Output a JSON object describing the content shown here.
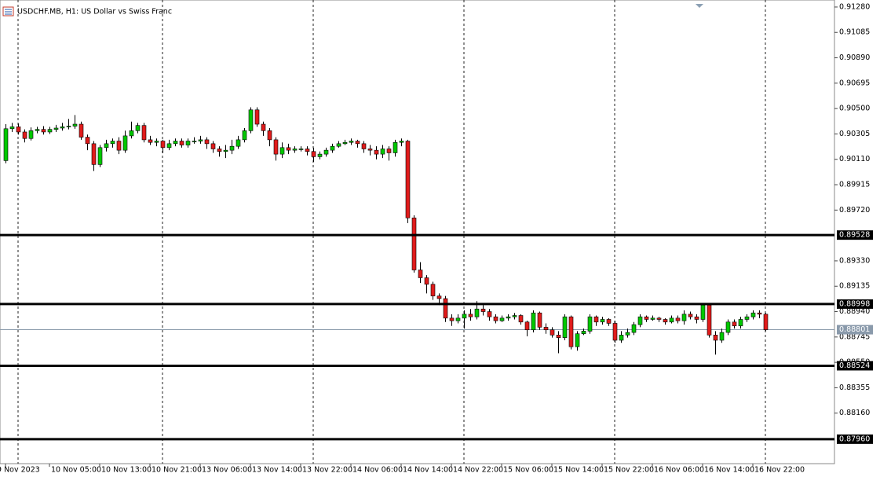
{
  "chart_data": {
    "type": "candlestick",
    "title": "USDCHF.MB, H1:  US Dollar vs Swiss Franc",
    "up_color": "#00c800",
    "down_color": "#e01b1b",
    "categories": [
      "9 Nov 2023",
      null,
      null,
      null,
      null,
      null,
      null,
      "10 Nov 05:00",
      null,
      null,
      null,
      null,
      null,
      null,
      null,
      "10 Nov 13:00",
      null,
      null,
      null,
      null,
      null,
      null,
      null,
      "10 Nov 21:00",
      null,
      null,
      null,
      null,
      null,
      null,
      null,
      "13 Nov 06:00",
      null,
      null,
      null,
      null,
      null,
      null,
      null,
      "13 Nov 14:00",
      null,
      null,
      null,
      null,
      null,
      null,
      null,
      "13 Nov 22:00",
      null,
      null,
      null,
      null,
      null,
      null,
      null,
      "14 Nov 06:00",
      null,
      null,
      null,
      null,
      null,
      null,
      null,
      "14 Nov 14:00",
      null,
      null,
      null,
      null,
      null,
      null,
      null,
      "14 Nov 22:00",
      null,
      null,
      null,
      null,
      null,
      null,
      null,
      "15 Nov 06:00",
      null,
      null,
      null,
      null,
      null,
      null,
      null,
      "15 Nov 14:00",
      null,
      null,
      null,
      null,
      null,
      null,
      null,
      "15 Nov 22:00",
      null,
      null,
      null,
      null,
      null,
      null,
      null,
      "16 Nov 06:00",
      null,
      null,
      null,
      null,
      null,
      null,
      null,
      "16 Nov 14:00",
      null,
      null,
      null,
      null,
      null,
      null,
      null,
      "16 Nov 22:00",
      null,
      null
    ],
    "open": [
      0.901,
      0.90345,
      0.9036,
      0.9032,
      0.9027,
      0.9033,
      0.9034,
      0.9032,
      0.9034,
      0.9035,
      0.9036,
      0.90365,
      0.9038,
      0.9028,
      0.9023,
      0.9007,
      0.902,
      0.9023,
      0.9025,
      0.9018,
      0.9029,
      0.9033,
      0.9037,
      0.9026,
      0.9024,
      0.9025,
      0.902,
      0.9023,
      0.9025,
      0.9022,
      0.9025,
      0.9025,
      0.9026,
      0.9023,
      0.9019,
      0.9017,
      0.9018,
      0.9021,
      0.9026,
      0.9033,
      0.9049,
      0.9038,
      0.9033,
      0.9026,
      0.9015,
      0.902,
      0.9018,
      0.9019,
      0.9019,
      0.9017,
      0.9013,
      0.9015,
      0.9018,
      0.9021,
      0.9023,
      0.9024,
      0.9025,
      0.9023,
      0.9019,
      0.9018,
      0.9015,
      0.9019,
      0.9016,
      0.9024,
      0.9025,
      0.8966,
      0.8926,
      0.892,
      0.8915,
      0.8906,
      0.8904,
      0.8889,
      0.8887,
      0.8889,
      0.8892,
      0.889,
      0.8896,
      0.8894,
      0.889,
      0.8887,
      0.8889,
      0.889,
      0.8891,
      0.8886,
      0.888,
      0.8893,
      0.8882,
      0.888,
      0.8876,
      0.8874,
      0.889,
      0.8867,
      0.8877,
      0.8879,
      0.889,
      0.8886,
      0.8888,
      0.8885,
      0.8872,
      0.8876,
      0.8878,
      0.8884,
      0.889,
      0.8888,
      0.8889,
      0.8888,
      0.8886,
      0.8889,
      0.8887,
      0.8892,
      0.889,
      0.8888,
      0.8899,
      0.8876,
      0.8872,
      0.8878,
      0.8886,
      0.8883,
      0.8888,
      0.889,
      0.8893,
      0.8892
    ],
    "high": [
      0.9038,
      0.9039,
      0.90385,
      0.9034,
      0.90355,
      0.9036,
      0.90365,
      0.9036,
      0.90375,
      0.9039,
      0.9042,
      0.9045,
      0.904,
      0.903,
      0.9025,
      0.9022,
      0.9026,
      0.9027,
      0.9028,
      0.9033,
      0.904,
      0.9039,
      0.9039,
      0.9029,
      0.9027,
      0.9026,
      0.9026,
      0.9027,
      0.9027,
      0.9027,
      0.9028,
      0.9029,
      0.9028,
      0.9025,
      0.9021,
      0.9022,
      0.9026,
      0.9029,
      0.9035,
      0.9051,
      0.9051,
      0.904,
      0.9035,
      0.9028,
      0.9024,
      0.9023,
      0.9021,
      0.9021,
      0.9021,
      0.902,
      0.9017,
      0.902,
      0.9023,
      0.9025,
      0.9026,
      0.9027,
      0.9026,
      0.9025,
      0.9022,
      0.9021,
      0.9022,
      0.9021,
      0.9026,
      0.9027,
      0.9026,
      0.8968,
      0.8932,
      0.8922,
      0.8917,
      0.8908,
      0.8906,
      0.8892,
      0.8892,
      0.8895,
      0.8896,
      0.8902,
      0.8899,
      0.8896,
      0.8892,
      0.8891,
      0.8892,
      0.8893,
      0.8892,
      0.8887,
      0.8895,
      0.8894,
      0.8885,
      0.8882,
      0.8879,
      0.8892,
      0.8891,
      0.8879,
      0.8881,
      0.8892,
      0.8891,
      0.889,
      0.8889,
      0.8887,
      0.8879,
      0.8881,
      0.8886,
      0.8892,
      0.8891,
      0.8891,
      0.889,
      0.8889,
      0.8891,
      0.8891,
      0.8895,
      0.8894,
      0.8892,
      0.89,
      0.89,
      0.8879,
      0.8881,
      0.8888,
      0.8888,
      0.889,
      0.8892,
      0.8895,
      0.8895,
      0.8893
    ],
    "low": [
      0.9008,
      0.9032,
      0.903,
      0.9024,
      0.90255,
      0.9031,
      0.903,
      0.90305,
      0.9032,
      0.9033,
      0.9034,
      0.90345,
      0.9026,
      0.9018,
      0.9002,
      0.9005,
      0.9017,
      0.902,
      0.9015,
      0.9016,
      0.9027,
      0.9031,
      0.9024,
      0.9022,
      0.9021,
      0.9016,
      0.9018,
      0.9021,
      0.902,
      0.902,
      0.9023,
      0.9023,
      0.9019,
      0.9016,
      0.9013,
      0.9012,
      0.9015,
      0.9019,
      0.9024,
      0.9031,
      0.9036,
      0.9029,
      0.9021,
      0.901,
      0.9012,
      0.9015,
      0.9016,
      0.9017,
      0.9014,
      0.9009,
      0.9011,
      0.9013,
      0.9016,
      0.902,
      0.9022,
      0.9022,
      0.902,
      0.9016,
      0.9014,
      0.9011,
      0.9012,
      0.901,
      0.9013,
      0.9021,
      0.8962,
      0.8924,
      0.8916,
      0.8908,
      0.8903,
      0.8899,
      0.8886,
      0.8883,
      0.8885,
      0.8881,
      0.8887,
      0.8888,
      0.8891,
      0.8887,
      0.8885,
      0.8886,
      0.8887,
      0.8888,
      0.8884,
      0.8875,
      0.8878,
      0.888,
      0.8877,
      0.8874,
      0.8862,
      0.8872,
      0.8865,
      0.8864,
      0.8876,
      0.8877,
      0.8883,
      0.8884,
      0.8883,
      0.887,
      0.887,
      0.8874,
      0.8876,
      0.8882,
      0.8886,
      0.8887,
      0.8886,
      0.8884,
      0.8885,
      0.8885,
      0.8884,
      0.8888,
      0.8885,
      0.8886,
      0.8874,
      0.8861,
      0.887,
      0.8876,
      0.8881,
      0.8881,
      0.8886,
      0.8888,
      0.8889,
      0.8879
    ],
    "close": [
      0.90345,
      0.9036,
      0.9032,
      0.9027,
      0.9033,
      0.9034,
      0.9032,
      0.9034,
      0.9035,
      0.9036,
      0.90365,
      0.9038,
      0.9028,
      0.9023,
      0.9007,
      0.902,
      0.9023,
      0.9025,
      0.9018,
      0.9029,
      0.9033,
      0.9037,
      0.9026,
      0.9024,
      0.9025,
      0.902,
      0.9023,
      0.9025,
      0.9022,
      0.9025,
      0.9025,
      0.9026,
      0.9023,
      0.9019,
      0.9017,
      0.9018,
      0.9021,
      0.9026,
      0.9033,
      0.9049,
      0.9038,
      0.9033,
      0.9026,
      0.9015,
      0.902,
      0.9018,
      0.9019,
      0.9019,
      0.9017,
      0.9013,
      0.9015,
      0.9018,
      0.9021,
      0.9023,
      0.9024,
      0.9025,
      0.9023,
      0.9019,
      0.9018,
      0.9015,
      0.9019,
      0.9016,
      0.9024,
      0.9025,
      0.8966,
      0.8926,
      0.892,
      0.8915,
      0.8906,
      0.8904,
      0.8889,
      0.8887,
      0.8889,
      0.8892,
      0.889,
      0.8896,
      0.8894,
      0.889,
      0.8887,
      0.8889,
      0.889,
      0.8891,
      0.8886,
      0.888,
      0.8893,
      0.8882,
      0.888,
      0.8876,
      0.8874,
      0.889,
      0.8867,
      0.8877,
      0.8879,
      0.889,
      0.8886,
      0.8888,
      0.8885,
      0.8872,
      0.8876,
      0.8878,
      0.8884,
      0.889,
      0.8888,
      0.8889,
      0.8888,
      0.8886,
      0.8889,
      0.8887,
      0.8892,
      0.889,
      0.8888,
      0.8899,
      0.8876,
      0.8872,
      0.8878,
      0.8886,
      0.8883,
      0.8888,
      0.889,
      0.8893,
      0.8892,
      0.88801
    ],
    "ylim": [
      0.87772,
      0.91334
    ],
    "yticks": [
      {
        "value": 0.9128,
        "label": "0.91280"
      },
      0.91085,
      {
        "value": 0.9089,
        "label": "0.90890"
      },
      0.90695,
      {
        "value": 0.905,
        "label": "0.90500"
      },
      0.90305,
      {
        "value": 0.9011,
        "label": "0.90110"
      },
      0.89915,
      {
        "value": 0.8972,
        "label": "0.89720"
      },
      {
        "value": 0.8933,
        "label": "0.89330"
      },
      0.89135,
      {
        "value": 0.8894,
        "label": "0.88940"
      },
      0.88745,
      {
        "value": 0.8855,
        "label": "0.88550"
      },
      0.88355,
      {
        "value": 0.8816,
        "label": "0.88160"
      }
    ],
    "levels": [
      0.89528,
      0.88998,
      0.88524,
      {
        "value": 0.8796,
        "label": "0.87960"
      }
    ],
    "last_price": 0.88801
  }
}
